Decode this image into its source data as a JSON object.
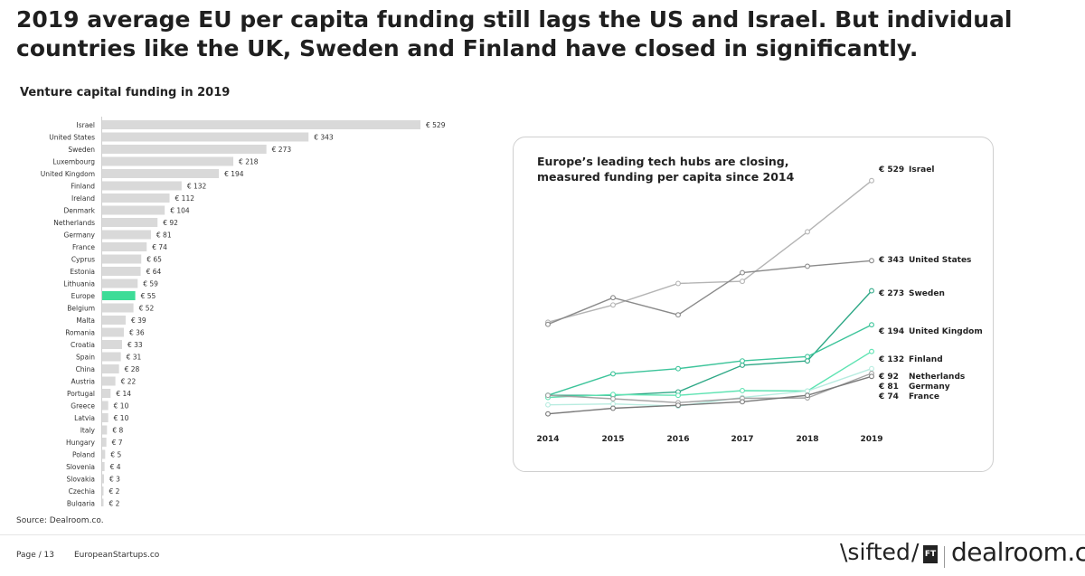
{
  "headline": "2019 average EU per capita funding still lags the US and Israel. But individual countries like the UK, Sweden and Finland have closed in significantly.",
  "source": "Source: Dealroom.co.",
  "footer": {
    "page": "Page / 13",
    "site": "EuropeanStartups.co"
  },
  "logos": {
    "sifted": "\\sifted",
    "slash": "/",
    "ft": "FT",
    "dealroom": "dealroom",
    "dealroom_suffix": ".co"
  },
  "colors": {
    "bar": "#d9d9d9",
    "bar_highlight": "#3ddc97",
    "line_israel": "#b4b4b4",
    "line_us": "#8a8a8a",
    "line_sweden": "#2ea886",
    "line_uk": "#3cc49a",
    "line_finland": "#5ee3b2",
    "line_netherlands": "#b8ece0",
    "line_germany": "#a3a3a3",
    "line_france": "#7a7a7a"
  },
  "chart_data": [
    {
      "type": "bar",
      "orientation": "horizontal",
      "title": "Venture capital funding in 2019",
      "categories": [
        "Israel",
        "United States",
        "Sweden",
        "Luxembourg",
        "United Kingdom",
        "Finland",
        "Ireland",
        "Denmark",
        "Netherlands",
        "Germany",
        "France",
        "Cyprus",
        "Estonia",
        "Lithuania",
        "Europe",
        "Belgium",
        "Malta",
        "Romania",
        "Croatia",
        "Spain",
        "China",
        "Austria",
        "Portugal",
        "Greece",
        "Latvia",
        "Italy",
        "Hungary",
        "Poland",
        "Slovenia",
        "Slovakia",
        "Czechia",
        "Bulgaria"
      ],
      "values": [
        529,
        343,
        273,
        218,
        194,
        132,
        112,
        104,
        92,
        81,
        74,
        65,
        64,
        59,
        55,
        52,
        39,
        36,
        33,
        31,
        28,
        22,
        14,
        10,
        10,
        8,
        7,
        5,
        4,
        3,
        2,
        2
      ],
      "value_labels": [
        "€ 529",
        "€ 343",
        "€ 273",
        "€ 218",
        "€ 194",
        "€ 132",
        "€ 112",
        "€ 104",
        "€ 92",
        "€ 81",
        "€ 74",
        "€ 65",
        "€ 64",
        "€ 59",
        "€ 55",
        "€ 52",
        "€ 39",
        "€ 36",
        "€ 33",
        "€ 31",
        "€ 28",
        "€ 22",
        "€ 14",
        "€ 10",
        "€ 10",
        "€ 8",
        "€ 7",
        "€ 5",
        "€ 4",
        "€ 3",
        "€ 2",
        "€ 2"
      ],
      "highlight": "Europe",
      "xlim": [
        0,
        529
      ]
    },
    {
      "type": "line",
      "title": "Europe’s leading tech hubs are closing, measured funding per capita since 2014",
      "x": [
        "2014",
        "2015",
        "2016",
        "2017",
        "2018",
        "2019"
      ],
      "series": [
        {
          "name": "Israel",
          "values": [
            200,
            240,
            290,
            295,
            410,
            529
          ],
          "end_label": "€ 529"
        },
        {
          "name": "United States",
          "values": [
            195,
            257,
            217,
            315,
            330,
            343
          ],
          "end_label": "€ 343"
        },
        {
          "name": "Sweden",
          "values": [
            30,
            30,
            38,
            100,
            110,
            273
          ],
          "end_label": "€ 273"
        },
        {
          "name": "United Kingdom",
          "values": [
            30,
            80,
            92,
            110,
            120,
            194
          ],
          "end_label": "€ 194"
        },
        {
          "name": "Finland",
          "values": [
            25,
            32,
            30,
            41,
            40,
            132
          ],
          "end_label": "€ 132"
        },
        {
          "name": "Netherlands",
          "values": [
            8,
            10,
            5,
            25,
            40,
            92
          ],
          "end_label": "€ 92"
        },
        {
          "name": "Germany",
          "values": [
            30,
            22,
            13,
            23,
            24,
            81
          ],
          "end_label": "€ 81"
        },
        {
          "name": "France",
          "values": [
            -13,
            0,
            7,
            15,
            30,
            74
          ],
          "end_label": "€ 74"
        }
      ],
      "ylim": [
        -20,
        560
      ],
      "grid": false
    }
  ]
}
